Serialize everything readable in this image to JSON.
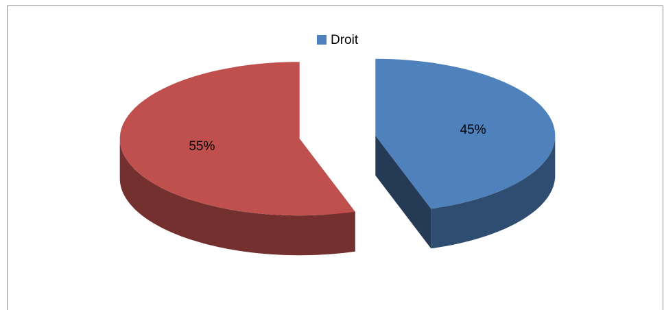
{
  "chart_data": {
    "type": "pie",
    "categories": [
      "Droit",
      null
    ],
    "values": [
      45,
      55
    ],
    "value_labels": [
      "45%",
      "55%"
    ],
    "colors": [
      "#4f81bd",
      "#c0504d"
    ],
    "legend": "top"
  }
}
